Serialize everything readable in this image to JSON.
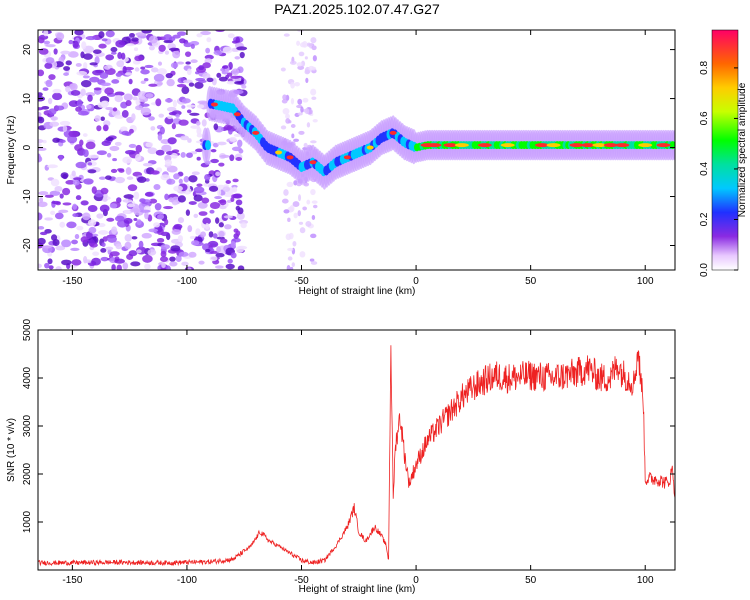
{
  "title": "PAZ1.2025.102.07.47.G27",
  "chart_data": [
    {
      "type": "heatmap",
      "xlabel": "Height of straight line (km)",
      "ylabel": "Frequency (Hz)",
      "xlim": [
        -165,
        113
      ],
      "ylim": [
        -25,
        24
      ],
      "x_ticks": [
        -150,
        -100,
        -50,
        0,
        50,
        100
      ],
      "y_ticks": [
        -20,
        -10,
        0,
        10,
        20
      ],
      "colorbar": {
        "label": "Normalized spectral amplitude",
        "range": [
          0,
          0.95
        ],
        "ticks": [
          0.0,
          0.2,
          0.4,
          0.6,
          0.8
        ],
        "tick_labels": [
          "0.0",
          "0.2",
          "0.4",
          "0.6",
          "0.8"
        ],
        "colormap": "rainbow"
      },
      "ridge": {
        "x": [
          -90,
          -80,
          -75,
          -70,
          -65,
          -60,
          -55,
          -50,
          -45,
          -40,
          -35,
          -30,
          -25,
          -20,
          -15,
          -10,
          -5,
          0,
          5,
          20,
          40,
          60,
          80,
          100,
          113
        ],
        "freq": [
          9,
          8,
          5,
          3,
          0,
          -1,
          -2,
          -4,
          -3,
          -5,
          -3,
          -2,
          -1,
          0,
          2,
          3,
          1,
          0,
          0.5,
          0.5,
          0.5,
          0.5,
          0.5,
          0.5,
          0.5
        ]
      }
    },
    {
      "type": "line",
      "xlabel": "Height of straight line (km)",
      "ylabel": "SNR (10 * v/v)",
      "xlim": [
        -165,
        113
      ],
      "ylim": [
        0,
        5000
      ],
      "x_ticks": [
        -150,
        -100,
        -50,
        0,
        50,
        100
      ],
      "y_ticks": [
        1000,
        2000,
        3000,
        4000,
        5000
      ],
      "series_color": "#ee2222",
      "series": [
        {
          "x": [
            -165,
            -150,
            -130,
            -110,
            -90,
            -80,
            -72,
            -68,
            -64,
            -60,
            -55,
            -50,
            -45,
            -40,
            -35,
            -30,
            -27,
            -25,
            -22,
            -18,
            -15,
            -13,
            -12,
            -11,
            -10,
            -9,
            -7,
            -5,
            -3,
            0,
            5,
            10,
            15,
            20,
            25,
            30,
            35,
            40,
            50,
            60,
            70,
            75,
            80,
            85,
            88,
            90,
            95,
            97,
            98,
            99,
            100,
            105,
            110,
            112,
            113
          ],
          "y": [
            150,
            150,
            160,
            150,
            170,
            220,
            500,
            800,
            600,
            500,
            350,
            200,
            150,
            200,
            500,
            900,
            1300,
            800,
            600,
            900,
            700,
            500,
            200,
            4800,
            1500,
            2600,
            3200,
            2400,
            1800,
            2200,
            2700,
            3000,
            3300,
            3600,
            3800,
            3950,
            4050,
            4000,
            4050,
            4000,
            4100,
            4200,
            4000,
            4000,
            4300,
            4100,
            3900,
            4600,
            3900,
            3800,
            1900,
            1900,
            1800,
            2100,
            1500
          ]
        }
      ]
    }
  ]
}
